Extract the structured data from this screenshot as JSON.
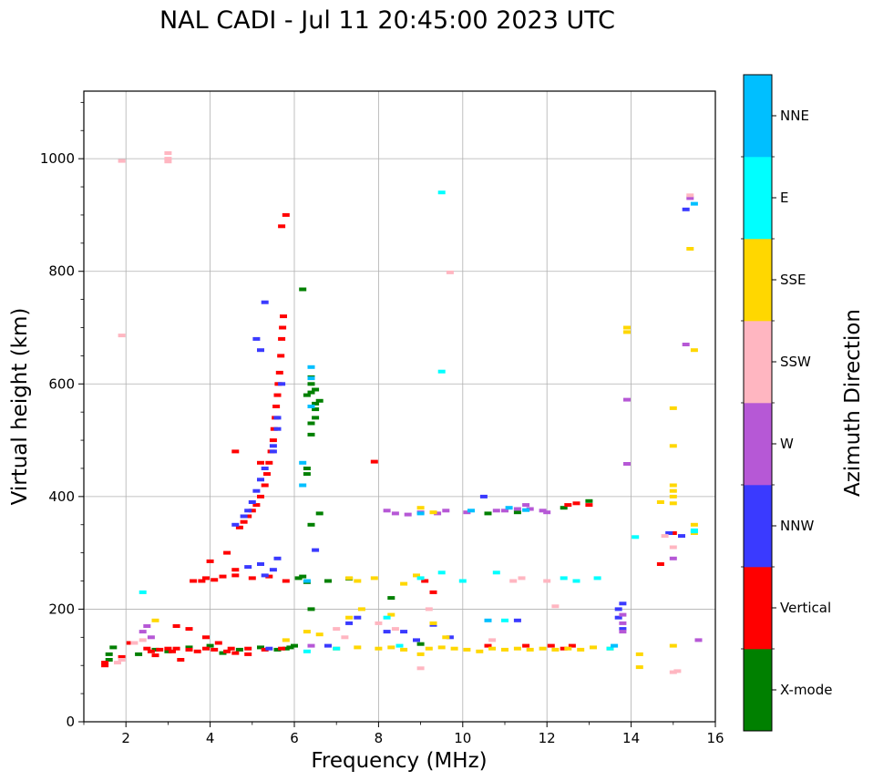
{
  "chart_data": {
    "type": "scatter",
    "title": "NAL CADI - Jul 11 20:45:00 2023 UTC",
    "xlabel": "Frequency (MHz)",
    "ylabel": "Virtual height (km)",
    "xlim": [
      1,
      16
    ],
    "ylim": [
      0,
      1120
    ],
    "grid": true,
    "xticks": [
      2,
      4,
      6,
      8,
      10,
      12,
      14,
      16
    ],
    "yticks": [
      0,
      200,
      400,
      600,
      800,
      1000
    ],
    "colorbar": {
      "label": "Azimuth Direction",
      "categories": [
        {
          "name": "X-mode",
          "color": "#008000"
        },
        {
          "name": "Vertical",
          "color": "#ff0000"
        },
        {
          "name": "NNW",
          "color": "#3a3aff"
        },
        {
          "name": "W",
          "color": "#b658d6"
        },
        {
          "name": "SSW",
          "color": "#ffb6c1"
        },
        {
          "name": "SSE",
          "color": "#ffd700"
        },
        {
          "name": "E",
          "color": "#00ffff"
        },
        {
          "name": "NNE",
          "color": "#00bfff"
        }
      ]
    },
    "series": [
      {
        "name": "X-mode",
        "points": [
          [
            1.6,
            110
          ],
          [
            1.6,
            120
          ],
          [
            1.7,
            132
          ],
          [
            2.3,
            120
          ],
          [
            2.7,
            128
          ],
          [
            3.0,
            125
          ],
          [
            3.5,
            132
          ],
          [
            4.0,
            135
          ],
          [
            4.3,
            122
          ],
          [
            4.7,
            128
          ],
          [
            5.2,
            132
          ],
          [
            5.6,
            128
          ],
          [
            5.9,
            132
          ],
          [
            6.1,
            255
          ],
          [
            6.2,
            258
          ],
          [
            6.3,
            248
          ],
          [
            6.8,
            250
          ],
          [
            7.3,
            254
          ],
          [
            5.8,
            130
          ],
          [
            6.0,
            135
          ],
          [
            6.4,
            200
          ],
          [
            6.4,
            350
          ],
          [
            6.6,
            370
          ],
          [
            6.3,
            440
          ],
          [
            6.3,
            450
          ],
          [
            6.4,
            510
          ],
          [
            6.4,
            530
          ],
          [
            6.5,
            540
          ],
          [
            6.5,
            555
          ],
          [
            6.5,
            565
          ],
          [
            6.6,
            570
          ],
          [
            6.3,
            580
          ],
          [
            6.4,
            585
          ],
          [
            6.5,
            590
          ],
          [
            6.4,
            600
          ],
          [
            6.4,
            612
          ],
          [
            6.2,
            768
          ],
          [
            8.3,
            220
          ],
          [
            9.0,
            138
          ],
          [
            10.6,
            370
          ],
          [
            11.3,
            372
          ],
          [
            12.4,
            380
          ],
          [
            13.0,
            392
          ]
        ]
      },
      {
        "name": "Vertical",
        "points": [
          [
            1.5,
            100
          ],
          [
            1.5,
            105
          ],
          [
            1.9,
            115
          ],
          [
            2.1,
            140
          ],
          [
            2.5,
            130
          ],
          [
            2.6,
            125
          ],
          [
            2.7,
            118
          ],
          [
            2.8,
            128
          ],
          [
            3.0,
            130
          ],
          [
            3.1,
            125
          ],
          [
            3.2,
            130
          ],
          [
            3.5,
            128
          ],
          [
            3.7,
            125
          ],
          [
            3.9,
            130
          ],
          [
            4.1,
            128
          ],
          [
            4.4,
            125
          ],
          [
            4.6,
            122
          ],
          [
            4.9,
            130
          ],
          [
            5.3,
            128
          ],
          [
            5.7,
            130
          ],
          [
            3.2,
            170
          ],
          [
            3.5,
            165
          ],
          [
            3.3,
            110
          ],
          [
            3.9,
            150
          ],
          [
            4.2,
            140
          ],
          [
            4.5,
            130
          ],
          [
            4.9,
            120
          ],
          [
            3.6,
            250
          ],
          [
            3.9,
            255
          ],
          [
            4.1,
            252
          ],
          [
            4.3,
            258
          ],
          [
            4.6,
            260
          ],
          [
            5.0,
            255
          ],
          [
            5.4,
            258
          ],
          [
            5.8,
            250
          ],
          [
            4.0,
            285
          ],
          [
            4.6,
            270
          ],
          [
            4.4,
            300
          ],
          [
            3.8,
            250
          ],
          [
            4.7,
            345
          ],
          [
            4.8,
            355
          ],
          [
            4.9,
            365
          ],
          [
            5.0,
            375
          ],
          [
            5.1,
            385
          ],
          [
            5.2,
            400
          ],
          [
            5.3,
            420
          ],
          [
            5.35,
            440
          ],
          [
            5.4,
            460
          ],
          [
            5.45,
            480
          ],
          [
            5.5,
            500
          ],
          [
            5.52,
            520
          ],
          [
            5.55,
            540
          ],
          [
            5.57,
            560
          ],
          [
            5.6,
            580
          ],
          [
            5.62,
            600
          ],
          [
            5.65,
            620
          ],
          [
            5.68,
            650
          ],
          [
            5.7,
            680
          ],
          [
            5.72,
            700
          ],
          [
            5.74,
            720
          ],
          [
            5.8,
            900
          ],
          [
            5.7,
            880
          ],
          [
            4.6,
            480
          ],
          [
            5.2,
            460
          ],
          [
            7.9,
            462
          ],
          [
            9.1,
            250
          ],
          [
            9.3,
            230
          ],
          [
            10.6,
            135
          ],
          [
            11.5,
            135
          ],
          [
            12.1,
            135
          ],
          [
            12.5,
            385
          ],
          [
            12.7,
            388
          ],
          [
            13.0,
            385
          ],
          [
            14.7,
            280
          ],
          [
            15.0,
            335
          ],
          [
            12.4,
            130
          ],
          [
            12.6,
            135
          ]
        ]
      },
      {
        "name": "NNW",
        "points": [
          [
            4.6,
            350
          ],
          [
            4.8,
            365
          ],
          [
            4.9,
            375
          ],
          [
            5.0,
            390
          ],
          [
            5.1,
            410
          ],
          [
            5.2,
            430
          ],
          [
            5.3,
            450
          ],
          [
            5.5,
            480
          ],
          [
            5.5,
            490
          ],
          [
            5.6,
            520
          ],
          [
            5.6,
            540
          ],
          [
            5.7,
            600
          ],
          [
            5.1,
            680
          ],
          [
            5.2,
            660
          ],
          [
            5.3,
            745
          ],
          [
            5.3,
            260
          ],
          [
            5.5,
            270
          ],
          [
            5.6,
            290
          ],
          [
            5.2,
            280
          ],
          [
            4.9,
            275
          ],
          [
            6.5,
            305
          ],
          [
            5.4,
            130
          ],
          [
            6.8,
            135
          ],
          [
            7.3,
            175
          ],
          [
            7.5,
            185
          ],
          [
            8.2,
            160
          ],
          [
            8.6,
            160
          ],
          [
            8.9,
            145
          ],
          [
            9.3,
            172
          ],
          [
            9.7,
            150
          ],
          [
            10.5,
            400
          ],
          [
            11.3,
            180
          ],
          [
            13.7,
            200
          ],
          [
            13.8,
            210
          ],
          [
            13.7,
            185
          ],
          [
            13.8,
            165
          ],
          [
            15.3,
            910
          ],
          [
            14.9,
            335
          ],
          [
            15.2,
            330
          ]
        ]
      },
      {
        "name": "W",
        "points": [
          [
            2.4,
            160
          ],
          [
            2.5,
            170
          ],
          [
            2.6,
            150
          ],
          [
            6.4,
            135
          ],
          [
            8.2,
            375
          ],
          [
            8.4,
            370
          ],
          [
            8.7,
            368
          ],
          [
            9.0,
            372
          ],
          [
            9.4,
            370
          ],
          [
            9.6,
            375
          ],
          [
            10.1,
            372
          ],
          [
            10.8,
            375
          ],
          [
            11.0,
            375
          ],
          [
            11.3,
            378
          ],
          [
            11.6,
            378
          ],
          [
            11.9,
            375
          ],
          [
            12.0,
            372
          ],
          [
            11.5,
            385
          ],
          [
            13.8,
            175
          ],
          [
            13.8,
            190
          ],
          [
            13.8,
            160
          ],
          [
            13.9,
            572
          ],
          [
            13.9,
            458
          ],
          [
            15.0,
            290
          ],
          [
            15.3,
            670
          ],
          [
            15.4,
            930
          ],
          [
            15.6,
            145
          ]
        ]
      },
      {
        "name": "SSW",
        "points": [
          [
            1.8,
            105
          ],
          [
            1.9,
            110
          ],
          [
            2.2,
            140
          ],
          [
            2.4,
            145
          ],
          [
            3.0,
            1010
          ],
          [
            3.0,
            1000
          ],
          [
            3.0,
            995
          ],
          [
            1.9,
            996
          ],
          [
            1.9,
            686
          ],
          [
            7.2,
            150
          ],
          [
            7.0,
            165
          ],
          [
            8.0,
            175
          ],
          [
            8.4,
            165
          ],
          [
            9.0,
            95
          ],
          [
            9.2,
            200
          ],
          [
            10.7,
            145
          ],
          [
            11.2,
            250
          ],
          [
            11.4,
            255
          ],
          [
            12.0,
            250
          ],
          [
            12.2,
            205
          ],
          [
            14.8,
            330
          ],
          [
            15.0,
            88
          ],
          [
            15.1,
            90
          ],
          [
            15.4,
            935
          ],
          [
            9.7,
            798
          ],
          [
            15.0,
            310
          ]
        ]
      },
      {
        "name": "SSE",
        "points": [
          [
            2.7,
            180
          ],
          [
            5.8,
            145
          ],
          [
            6.3,
            160
          ],
          [
            6.6,
            155
          ],
          [
            7.0,
            130
          ],
          [
            7.3,
            185
          ],
          [
            7.6,
            200
          ],
          [
            7.5,
            132
          ],
          [
            8.0,
            130
          ],
          [
            8.3,
            132
          ],
          [
            8.6,
            128
          ],
          [
            8.9,
            260
          ],
          [
            9.0,
            120
          ],
          [
            9.2,
            130
          ],
          [
            9.5,
            132
          ],
          [
            9.8,
            130
          ],
          [
            10.1,
            128
          ],
          [
            10.4,
            125
          ],
          [
            10.7,
            130
          ],
          [
            11.0,
            128
          ],
          [
            11.3,
            130
          ],
          [
            11.6,
            128
          ],
          [
            11.9,
            130
          ],
          [
            12.2,
            128
          ],
          [
            12.5,
            130
          ],
          [
            12.8,
            128
          ],
          [
            13.1,
            132
          ],
          [
            13.5,
            130
          ],
          [
            9.0,
            380
          ],
          [
            9.3,
            372
          ],
          [
            7.3,
            255
          ],
          [
            7.5,
            250
          ],
          [
            7.9,
            255
          ],
          [
            8.6,
            245
          ],
          [
            9.3,
            175
          ],
          [
            9.6,
            150
          ],
          [
            8.3,
            190
          ],
          [
            13.9,
            700
          ],
          [
            13.9,
            692
          ],
          [
            14.2,
            120
          ],
          [
            14.2,
            97
          ],
          [
            14.7,
            390
          ],
          [
            15.0,
            388
          ],
          [
            15.0,
            420
          ],
          [
            15.0,
            410
          ],
          [
            15.0,
            400
          ],
          [
            15.0,
            557
          ],
          [
            15.0,
            490
          ],
          [
            15.0,
            135
          ],
          [
            15.4,
            840
          ],
          [
            15.5,
            660
          ],
          [
            15.5,
            350
          ],
          [
            15.5,
            335
          ]
        ]
      },
      {
        "name": "E",
        "points": [
          [
            2.4,
            230
          ],
          [
            6.3,
            125
          ],
          [
            7.0,
            130
          ],
          [
            8.2,
            185
          ],
          [
            8.5,
            135
          ],
          [
            9.0,
            255
          ],
          [
            9.5,
            265
          ],
          [
            9.5,
            622
          ],
          [
            9.5,
            940
          ],
          [
            10.0,
            250
          ],
          [
            10.8,
            265
          ],
          [
            11.0,
            180
          ],
          [
            12.4,
            255
          ],
          [
            12.7,
            250
          ],
          [
            13.2,
            255
          ],
          [
            14.1,
            328
          ],
          [
            15.5,
            338
          ],
          [
            15.5,
            340
          ],
          [
            13.5,
            130
          ]
        ]
      },
      {
        "name": "NNE",
        "points": [
          [
            6.2,
            420
          ],
          [
            6.2,
            460
          ],
          [
            6.4,
            630
          ],
          [
            6.4,
            610
          ],
          [
            6.3,
            250
          ],
          [
            6.4,
            560
          ],
          [
            9.0,
            370
          ],
          [
            10.2,
            375
          ],
          [
            10.6,
            180
          ],
          [
            11.1,
            380
          ],
          [
            11.5,
            376
          ],
          [
            13.6,
            135
          ],
          [
            15.5,
            920
          ]
        ]
      }
    ]
  }
}
